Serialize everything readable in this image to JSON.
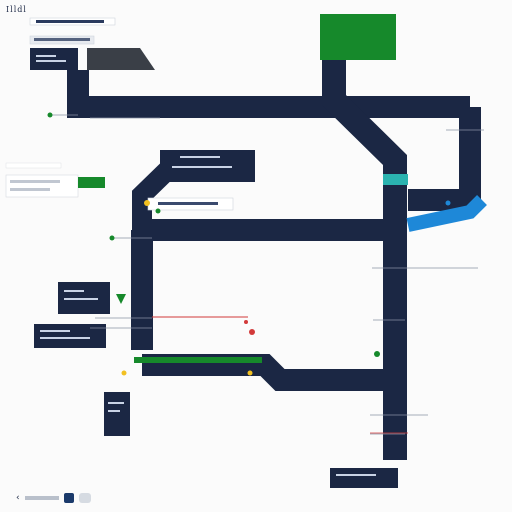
{
  "page": {
    "title": "Illdl"
  },
  "colors": {
    "navy": "#1b2744",
    "panel": "#233257",
    "green": "#16892b",
    "blue": "#1e88d8",
    "teal": "#2bb3b0",
    "red": "#d23a3a",
    "yellow": "#f2c021"
  },
  "icons": {
    "pin": "pin-icon",
    "node": "node-dot-icon",
    "arrow": "chevron-left-icon"
  }
}
